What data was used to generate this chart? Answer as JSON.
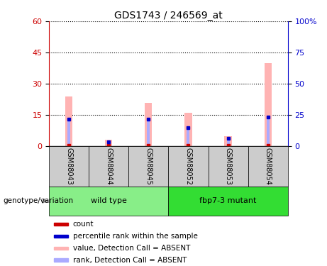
{
  "title": "GDS1743 / 246569_at",
  "samples": [
    "GSM88043",
    "GSM88044",
    "GSM88045",
    "GSM88052",
    "GSM88053",
    "GSM88054"
  ],
  "groups": [
    {
      "name": "wild type",
      "color": "#88ee88",
      "start": 0,
      "end": 2
    },
    {
      "name": "fbp7-3 mutant",
      "color": "#33dd33",
      "start": 3,
      "end": 5
    }
  ],
  "pink_bars": [
    24,
    3,
    21,
    16,
    5,
    40
  ],
  "blue_bars": [
    13,
    2,
    13,
    9,
    4,
    14
  ],
  "ylim_left": [
    0,
    60
  ],
  "ylim_right": [
    0,
    100
  ],
  "yticks_left": [
    0,
    15,
    30,
    45,
    60
  ],
  "yticks_right": [
    0,
    25,
    50,
    75,
    100
  ],
  "ytick_labels_right": [
    "0",
    "25",
    "50",
    "75",
    "100%"
  ],
  "left_axis_color": "#cc0000",
  "right_axis_color": "#0000cc",
  "pink_color": "#ffb3b3",
  "blue_color": "#aaaaff",
  "red_color": "#cc0000",
  "dark_blue_color": "#0000cc",
  "bg_color_samples": "#cccccc",
  "legend_items": [
    {
      "color": "#cc0000",
      "label": "count"
    },
    {
      "color": "#0000cc",
      "label": "percentile rank within the sample"
    },
    {
      "color": "#ffb3b3",
      "label": "value, Detection Call = ABSENT"
    },
    {
      "color": "#aaaaff",
      "label": "rank, Detection Call = ABSENT"
    }
  ]
}
